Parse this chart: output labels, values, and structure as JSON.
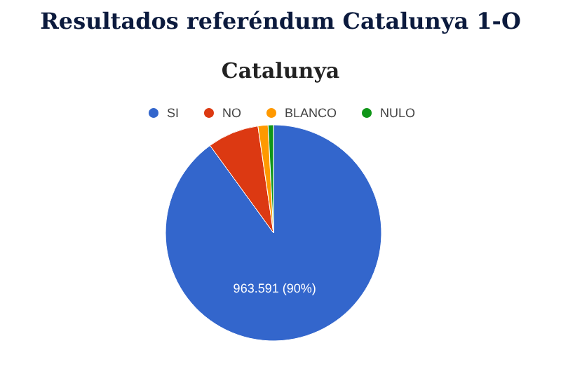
{
  "chart_data": {
    "type": "pie",
    "title": "Resultados referéndum Catalunya 1-O",
    "subtitle": "Catalunya",
    "categories": [
      "SI",
      "NO",
      "BLANCO",
      "NULO"
    ],
    "values": [
      90,
      7.7,
      1.5,
      0.8
    ],
    "colors": [
      "#3366cc",
      "#dc3912",
      "#ff9900",
      "#109618"
    ],
    "value_labels": [
      "963.591 (90%)",
      null,
      null,
      null
    ],
    "legend": "top"
  }
}
